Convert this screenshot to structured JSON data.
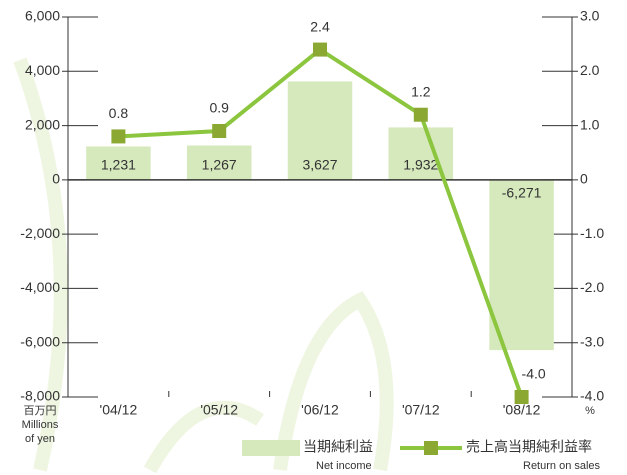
{
  "chart_data": {
    "type": "bar",
    "categories": [
      "'04/12",
      "'05/12",
      "'06/12",
      "'07/12",
      "'08/12"
    ],
    "series": [
      {
        "name": "当期純利益",
        "subname": "Net income",
        "type": "bar",
        "color": "#d6e9bd",
        "values": [
          1231,
          1267,
          3627,
          1932,
          -6271
        ],
        "value_labels": [
          "1,231",
          "1,267",
          "3,627",
          "1,932",
          "-6,271"
        ]
      },
      {
        "name": "売上高当期純利益率",
        "subname": "Return on sales",
        "type": "line",
        "axis": "y2",
        "color": "#8cc63f",
        "marker_color": "#8aa832",
        "values": [
          0.8,
          0.9,
          2.4,
          1.2,
          -4.0
        ],
        "value_labels": [
          "0.8",
          "0.9",
          "2.4",
          "1.2",
          "-4.0"
        ]
      }
    ],
    "ylim": [
      -8000,
      6000
    ],
    "yticks": [
      {
        "value": 6000,
        "label": "6,000"
      },
      {
        "value": 4000,
        "label": "4,000"
      },
      {
        "value": 2000,
        "label": "2,000"
      },
      0,
      {
        "value": -2000,
        "label": "-2,000"
      },
      {
        "value": -4000,
        "label": "-4,000"
      },
      {
        "value": -6000,
        "label": "-6,000"
      },
      {
        "value": -8000,
        "label": "-8,000"
      }
    ],
    "y2lim": [
      -4,
      3
    ],
    "y2ticks": [
      {
        "value": 3,
        "label": "3.0"
      },
      {
        "value": 2,
        "label": "2.0"
      },
      {
        "value": 1,
        "label": "1.0"
      },
      0,
      {
        "value": -1,
        "label": "-1.0"
      },
      {
        "value": -2,
        "label": "-2.0"
      },
      {
        "value": -3,
        "label": "-3.0"
      },
      {
        "value": -4,
        "label": "-4.0"
      }
    ],
    "y_label": [
      "百万円",
      "Millions",
      "of yen"
    ],
    "y2_label": "%"
  }
}
